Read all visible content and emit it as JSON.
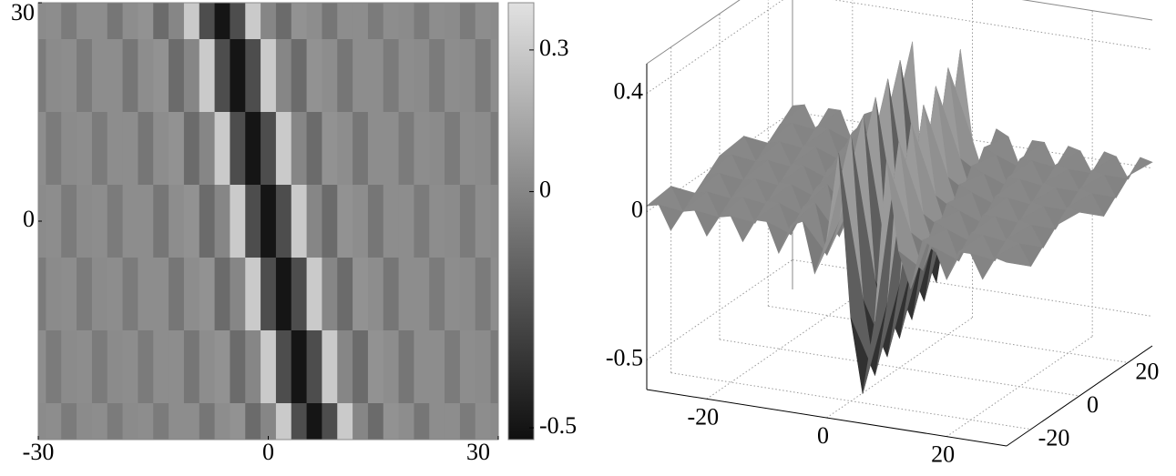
{
  "chart_data": [
    {
      "type": "heatmap",
      "x": [
        -30,
        -28,
        -26,
        -24,
        -22,
        -20,
        -18,
        -16,
        -14,
        -12,
        -10,
        -8,
        -6,
        -4,
        -2,
        0,
        2,
        4,
        6,
        8,
        10,
        12,
        14,
        16,
        18,
        20,
        22,
        24,
        26,
        28,
        30
      ],
      "y": [
        30,
        20,
        10,
        0,
        -10,
        -20,
        -30
      ],
      "z": [
        [
          0.02,
          0.03,
          -0.05,
          0.03,
          0.03,
          -0.07,
          0.03,
          0.05,
          -0.12,
          0,
          0.3,
          -0.25,
          -0.5,
          -0.25,
          0.3,
          0,
          -0.12,
          0.05,
          0.03,
          -0.07,
          0.03,
          0.03,
          -0.05,
          0.03,
          0.02,
          -0.05,
          0.03,
          0.02,
          -0.05,
          0.03,
          0.02
        ],
        [
          -0.05,
          0.02,
          0.03,
          -0.05,
          0.03,
          0.03,
          -0.07,
          0.03,
          0.05,
          -0.12,
          0,
          0.3,
          -0.25,
          -0.5,
          -0.25,
          0.3,
          0,
          -0.12,
          0.05,
          0.03,
          -0.07,
          0.03,
          0.03,
          -0.05,
          0.03,
          0.02,
          -0.05,
          0.03,
          0.02,
          -0.05,
          0.03
        ],
        [
          0.03,
          -0.05,
          0.02,
          0.03,
          -0.05,
          0.03,
          0.03,
          -0.07,
          0.03,
          0.05,
          -0.12,
          0,
          0.3,
          -0.25,
          -0.5,
          -0.25,
          0.3,
          0,
          -0.12,
          0.05,
          0.03,
          -0.07,
          0.03,
          0.03,
          -0.05,
          0.03,
          0.02,
          -0.05,
          0.03,
          0.02,
          -0.05
        ],
        [
          0.02,
          0.03,
          -0.05,
          0.02,
          0.03,
          -0.05,
          0.03,
          0.03,
          -0.07,
          0.03,
          0.05,
          -0.12,
          0,
          0.3,
          -0.25,
          -0.5,
          -0.25,
          0.3,
          0,
          -0.12,
          0.05,
          0.03,
          -0.07,
          0.03,
          0.03,
          -0.05,
          0.03,
          0.02,
          -0.05,
          0.03,
          0.02
        ],
        [
          -0.05,
          0.02,
          0.03,
          -0.05,
          0.02,
          0.03,
          -0.05,
          0.03,
          0.03,
          -0.07,
          0.03,
          0.05,
          -0.12,
          0,
          0.3,
          -0.25,
          -0.5,
          -0.25,
          0.3,
          0,
          -0.12,
          0.05,
          0.03,
          -0.07,
          0.03,
          0.03,
          -0.05,
          0.03,
          0.02,
          -0.05,
          0.03
        ],
        [
          0.03,
          -0.05,
          0.02,
          0.03,
          -0.05,
          0.02,
          0.03,
          -0.05,
          0.03,
          0.03,
          -0.07,
          0.03,
          0.05,
          -0.12,
          0,
          0.3,
          -0.25,
          -0.5,
          -0.25,
          0.3,
          0,
          -0.12,
          0.05,
          0.03,
          -0.07,
          0.03,
          0.03,
          -0.05,
          0.03,
          0.02,
          -0.05
        ],
        [
          0.02,
          0.03,
          -0.05,
          0.02,
          0.03,
          -0.05,
          0.02,
          0.03,
          -0.05,
          0.03,
          0.03,
          -0.07,
          0.03,
          0.05,
          -0.12,
          0,
          0.3,
          -0.25,
          -0.5,
          -0.25,
          0.3,
          0,
          -0.12,
          0.05,
          0.03,
          -0.07,
          0.03,
          0.03,
          -0.05,
          0.03,
          0.02
        ]
      ],
      "xlim": [
        -30,
        30
      ],
      "ylim": [
        -30,
        30
      ],
      "xticks": [
        -30,
        0,
        30
      ],
      "yticks": [
        0,
        30
      ],
      "colorbar": {
        "clim": [
          -0.525,
          0.4
        ],
        "ticks": [
          -0.5,
          0,
          0.3
        ]
      }
    },
    {
      "type": "surface",
      "xlim": [
        -30,
        30
      ],
      "ylim": [
        -30,
        30
      ],
      "zlim": [
        -0.6,
        0.5
      ],
      "xticks": [
        -20,
        0,
        20
      ],
      "yticks": [
        -20,
        0,
        20
      ],
      "zticks": [
        -0.5,
        0,
        0.4
      ],
      "grid": true
    }
  ]
}
